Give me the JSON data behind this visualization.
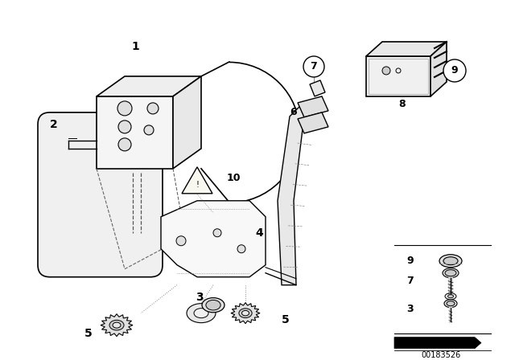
{
  "bg_color": "#ffffff",
  "fig_width": 6.4,
  "fig_height": 4.48,
  "dpi": 100,
  "watermark": "00183526",
  "line_color": "#000000",
  "gray_color": "#888888"
}
